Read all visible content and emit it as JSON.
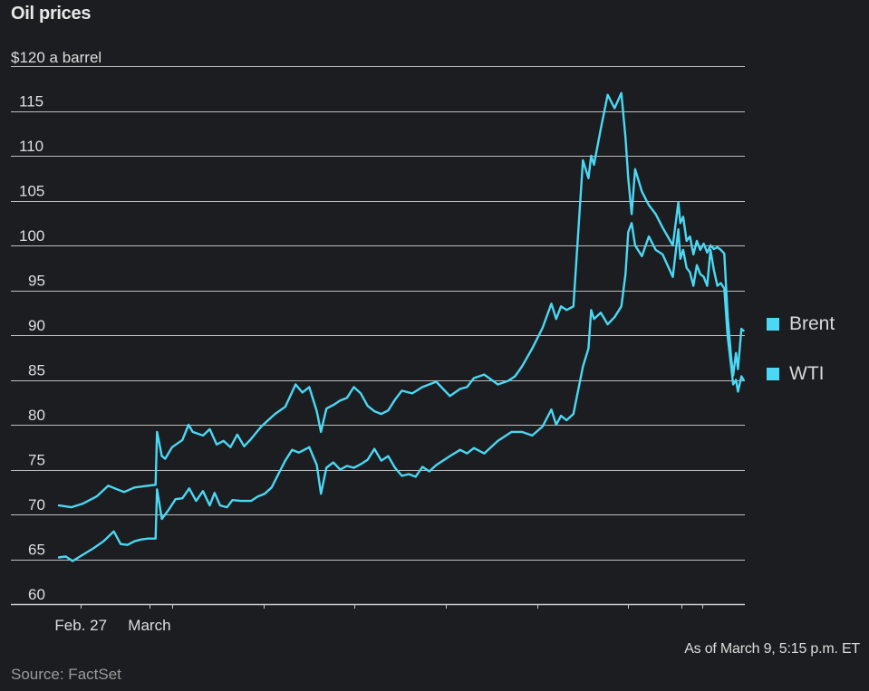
{
  "chart_data": {
    "type": "line",
    "title": "Oil prices",
    "ylabel": "$120 a barrel",
    "ylim": [
      60,
      120
    ],
    "yticks": [
      60,
      65,
      70,
      75,
      80,
      85,
      90,
      95,
      100,
      105,
      110,
      115
    ],
    "ytick_labels": [
      "60",
      "65",
      "70",
      "75",
      "80",
      "85",
      "90",
      "95",
      "100",
      "105",
      "110",
      "115"
    ],
    "xlabels": [
      "Feb. 27",
      "March"
    ],
    "xlim": [
      0,
      100
    ],
    "xlabel_positions": [
      3.2,
      13.2
    ],
    "minor_xticks": [
      3.2,
      13.2,
      16.5,
      29.8,
      43.1,
      56.4,
      69.7,
      83.0,
      90.8,
      93.8
    ],
    "series": [
      {
        "name": "Brent",
        "color": "#4ad8f5",
        "x": [
          0,
          1.8,
          3.5,
          5.5,
          7.2,
          8.5,
          9.5,
          11,
          13,
          14.1,
          14.3,
          15,
          15.5,
          16.5,
          18,
          18.9,
          19.5,
          21,
          22,
          23,
          24,
          25,
          26,
          27,
          28,
          29.5,
          30.5,
          31.5,
          33,
          34.5,
          35.5,
          36.5,
          37.6,
          38.2,
          39,
          40,
          41,
          42,
          43,
          44,
          45,
          46,
          47,
          48,
          49,
          50,
          51.5,
          53,
          55,
          57,
          58.5,
          59.5,
          60.5,
          62,
          64,
          65.5,
          66.5,
          67.5,
          69,
          70.5,
          71.8,
          72.5,
          73.2,
          74,
          75,
          76.4,
          77.2,
          77.6,
          78,
          79,
          80,
          81,
          82,
          82.6,
          83,
          83.5,
          84,
          85,
          86,
          87,
          88,
          89.5,
          90.3,
          90.6,
          91,
          91.5,
          92,
          92.5,
          93,
          93.5,
          94,
          94.5,
          95,
          95.5,
          96,
          96.5,
          97,
          97.5,
          98,
          98.3,
          98.7,
          99,
          99.5,
          99.8
        ],
        "values": [
          71,
          70.8,
          71.2,
          72,
          73.2,
          72.8,
          72.5,
          73,
          73.2,
          73.3,
          79.2,
          76.5,
          76.2,
          77.5,
          78.3,
          80,
          79.2,
          78.8,
          79.5,
          77.8,
          78.2,
          77.5,
          78.9,
          77.6,
          78.4,
          79.8,
          80.5,
          81.2,
          82,
          84.5,
          83.6,
          84.2,
          81.5,
          79.2,
          81.8,
          82.2,
          82.7,
          83,
          84.2,
          83.5,
          82.1,
          81.5,
          81.2,
          81.6,
          82.8,
          83.8,
          83.5,
          84.2,
          84.8,
          83.2,
          84,
          84.2,
          85.2,
          85.6,
          84.5,
          84.9,
          85.4,
          86.5,
          88.5,
          90.8,
          93.5,
          91.8,
          93.2,
          92.8,
          93.2,
          109.5,
          107.5,
          110,
          109,
          113,
          116.8,
          115.3,
          117,
          112,
          107.5,
          103.5,
          108.5,
          106,
          104.5,
          103.5,
          102,
          100,
          104.8,
          102.5,
          103.2,
          100.5,
          101,
          99,
          100.5,
          99.5,
          100.2,
          99.2,
          100,
          99.6,
          99.8,
          99.5,
          99.1,
          92,
          87.5,
          85.5,
          88,
          86.2,
          90.7,
          90.5
        ]
      },
      {
        "name": "WTI",
        "color": "#4ad8f5",
        "x": [
          0,
          1,
          2,
          3.5,
          5,
          6.5,
          8,
          9,
          10,
          11,
          12,
          13,
          14.1,
          14.3,
          15,
          16,
          17,
          18,
          19,
          20,
          21,
          22,
          22.7,
          23.5,
          24.5,
          25.3,
          26.5,
          28,
          29,
          30,
          31,
          32,
          33,
          34,
          35,
          36.5,
          37.6,
          38.2,
          39,
          40,
          41,
          42,
          43,
          44,
          45,
          46,
          47,
          48,
          49,
          50,
          51,
          52,
          53,
          54,
          55,
          56,
          57,
          58.5,
          59.5,
          60.5,
          62,
          64,
          66,
          67.5,
          69,
          70.5,
          71.8,
          72.5,
          73.2,
          74,
          75,
          76.4,
          77.2,
          77.6,
          78,
          79,
          80,
          81,
          82,
          82.6,
          83,
          83.5,
          84,
          85,
          86,
          87,
          88,
          89.5,
          90.3,
          90.6,
          91,
          91.5,
          92,
          92.5,
          93,
          93.5,
          94,
          94.5,
          95,
          95.5,
          96,
          96.5,
          97,
          97.5,
          98,
          98.3,
          98.7,
          99,
          99.5,
          99.8
        ],
        "values": [
          65.2,
          65.3,
          64.8,
          65.5,
          66.2,
          67,
          68.1,
          66.7,
          66.6,
          67,
          67.2,
          67.3,
          67.3,
          72.8,
          69.5,
          70.5,
          71.7,
          71.8,
          72.9,
          71.5,
          72.6,
          71,
          72.4,
          71,
          70.8,
          71.6,
          71.5,
          71.5,
          72,
          72.3,
          73,
          74.5,
          76,
          77.2,
          76.9,
          77.5,
          75.5,
          72.3,
          75.2,
          75.8,
          75,
          75.4,
          75.2,
          75.6,
          76.1,
          77.3,
          76,
          76.5,
          75.2,
          74.3,
          74.5,
          74.2,
          75.3,
          74.8,
          75.5,
          76,
          76.5,
          77.2,
          76.8,
          77.4,
          76.8,
          78.2,
          79.2,
          79.2,
          78.8,
          79.8,
          81.7,
          80,
          81,
          80.5,
          81.2,
          86.5,
          88.5,
          92.8,
          91.8,
          92.5,
          91.2,
          92,
          93.2,
          96.8,
          101.5,
          102.5,
          100,
          98.8,
          101,
          99.5,
          99,
          96.5,
          101.8,
          98.5,
          99.5,
          97.5,
          97,
          95.5,
          97.8,
          96.8,
          96.5,
          95.5,
          99.5,
          97.2,
          95.5,
          95.8,
          95.2,
          89.8,
          86.5,
          84.5,
          85,
          83.7,
          85.4,
          85
        ]
      }
    ]
  },
  "legend": [
    {
      "label": "Brent",
      "color": "#4ad8f5"
    },
    {
      "label": "WTI",
      "color": "#4ad8f5"
    }
  ],
  "footer": {
    "as_of": "As of March 9, 5:15 p.m. ET",
    "source": "Source: FactSet"
  }
}
